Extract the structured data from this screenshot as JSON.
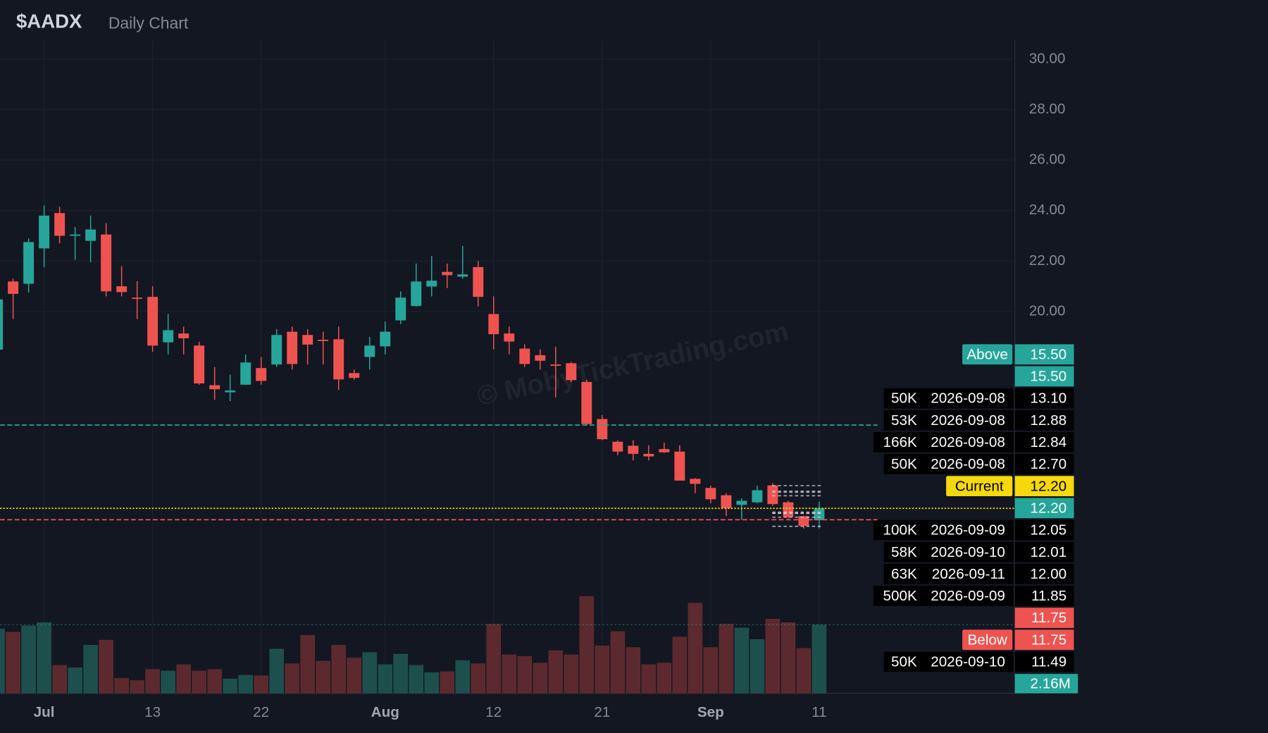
{
  "chart_data": {
    "type": "candlestick",
    "title": "$AADX",
    "subtitle": "Daily Chart",
    "watermark": "© MobyTickTrading.com",
    "categories": [
      null,
      null,
      null,
      "Jul",
      null,
      null,
      null,
      null,
      null,
      null,
      "13",
      null,
      null,
      null,
      null,
      null,
      null,
      "22",
      null,
      null,
      null,
      null,
      null,
      null,
      null,
      "Aug",
      null,
      null,
      null,
      null,
      null,
      null,
      "12",
      null,
      null,
      null,
      null,
      null,
      null,
      "21",
      null,
      null,
      null,
      null,
      null,
      null,
      "Sep",
      null,
      null,
      null,
      null,
      null,
      null,
      "11"
    ],
    "open": [
      18.49,
      21.19,
      21.1,
      22.5,
      23.9,
      23.0,
      22.8,
      23.05,
      21.0,
      20.55,
      20.58,
      18.78,
      19.13,
      18.65,
      17.08,
      16.8,
      17.1,
      17.76,
      17.9,
      19.2,
      19.07,
      18.88,
      18.9,
      17.56,
      18.2,
      18.62,
      19.65,
      20.22,
      20.99,
      21.57,
      21.38,
      21.76,
      19.9,
      19.13,
      18.53,
      18.27,
      17.9,
      17.95,
      17.21,
      15.74,
      14.84,
      14.68,
      14.36,
      14.55,
      14.45,
      13.37,
      13.01,
      12.72,
      12.34,
      12.44,
      13.11,
      12.44,
      11.89,
      11.73
    ],
    "high": [
      20.6,
      21.3,
      22.9,
      24.2,
      24.15,
      23.35,
      23.8,
      23.5,
      21.8,
      21.2,
      21.0,
      19.9,
      19.4,
      18.8,
      17.8,
      17.5,
      18.3,
      18.2,
      19.3,
      19.4,
      19.3,
      19.2,
      19.4,
      17.7,
      19.0,
      19.6,
      20.8,
      21.9,
      22.2,
      21.9,
      22.6,
      22.0,
      20.6,
      19.4,
      18.7,
      18.5,
      18.6,
      18.0,
      17.3,
      15.9,
      14.9,
      14.9,
      14.7,
      14.8,
      14.7,
      13.4,
      13.1,
      12.8,
      12.6,
      13.1,
      13.2,
      12.5,
      11.9,
      12.47
    ],
    "low": [
      18.4,
      19.7,
      20.75,
      21.75,
      22.7,
      22.05,
      21.95,
      20.6,
      20.6,
      19.7,
      18.4,
      18.3,
      18.3,
      17.1,
      16.5,
      16.45,
      17.1,
      17.1,
      17.8,
      17.7,
      17.9,
      17.9,
      16.9,
      17.3,
      17.7,
      18.3,
      19.5,
      20.2,
      20.6,
      20.93,
      21.3,
      20.2,
      18.5,
      18.3,
      17.8,
      17.7,
      16.6,
      17.2,
      15.5,
      14.9,
      14.3,
      14.1,
      14.1,
      14.4,
      13.3,
      12.8,
      12.4,
      11.9,
      11.75,
      12.4,
      12.3,
      11.8,
      11.4,
      11.4
    ],
    "close": [
      20.48,
      20.7,
      22.75,
      23.8,
      23.0,
      23.05,
      23.25,
      20.8,
      20.77,
      20.5,
      18.65,
      19.26,
      18.94,
      17.15,
      16.92,
      16.87,
      17.98,
      17.25,
      19.07,
      17.92,
      18.69,
      18.84,
      17.31,
      17.37,
      18.65,
      19.2,
      20.55,
      21.19,
      21.22,
      21.44,
      21.47,
      20.58,
      19.1,
      18.81,
      17.92,
      18.05,
      17.85,
      17.28,
      15.54,
      14.94,
      14.45,
      14.36,
      14.26,
      14.42,
      13.3,
      13.17,
      12.56,
      12.21,
      12.5,
      12.92,
      12.37,
      11.86,
      11.51,
      12.2
    ],
    "volume": [
      2030000,
      1930000,
      2130000,
      2230000,
      890000,
      810000,
      1520000,
      1680000,
      480000,
      410000,
      760000,
      710000,
      910000,
      710000,
      760000,
      460000,
      580000,
      560000,
      1400000,
      940000,
      1830000,
      1020000,
      1520000,
      1120000,
      1290000,
      910000,
      1240000,
      890000,
      660000,
      690000,
      1040000,
      940000,
      2180000,
      1220000,
      1170000,
      960000,
      1350000,
      1220000,
      3050000,
      1500000,
      1950000,
      1450000,
      910000,
      960000,
      1780000,
      2840000,
      1450000,
      2180000,
      2060000,
      1700000,
      2340000,
      2230000,
      1420000,
      2160000
    ],
    "volume_last_label": "2.16M",
    "up_color": "#26a69a",
    "down_color": "#ef5350",
    "volume_up_color": "#1d4f4d",
    "volume_down_color": "#5c2a2e",
    "ylim": [
      4.87,
      30.74
    ],
    "yticks": [
      {
        "value": 30,
        "label": "30.00"
      },
      {
        "value": 28,
        "label": "28.00"
      },
      {
        "value": 26,
        "label": "26.00"
      },
      {
        "value": 24,
        "label": "24.00"
      },
      {
        "value": 22,
        "label": "22.00"
      },
      {
        "value": 20,
        "label": "20.00"
      }
    ],
    "y2lim": [
      0,
      20500000
    ],
    "grid": true,
    "rows": [
      {
        "tag": "Above",
        "tag_color": "#26a69a",
        "price": 15.5,
        "price_label": "15.50",
        "color": "#26a69a"
      },
      {
        "price": 15.5,
        "price_label": "15.50",
        "color": "#26a69a"
      },
      {
        "size": "50K",
        "date": "2026-09-08",
        "price": 13.1,
        "price_label": "13.10",
        "color": "#000000"
      },
      {
        "size": "53K",
        "date": "2026-09-08",
        "price": 12.88,
        "price_label": "12.88",
        "color": "#000000"
      },
      {
        "size": "166K",
        "date": "2026-09-08",
        "price": 12.84,
        "price_label": "12.84",
        "color": "#000000"
      },
      {
        "size": "50K",
        "date": "2026-09-08",
        "price": 12.7,
        "price_label": "12.70",
        "color": "#000000"
      },
      {
        "tag": "Current",
        "tag_color": "#f5d90a",
        "price": 12.2,
        "price_label": "12.20",
        "color": "#f5d90a"
      },
      {
        "price": 12.2,
        "price_label": "12.20",
        "color": "#26a69a"
      },
      {
        "size": "100K",
        "date": "2026-09-09",
        "price": 12.05,
        "price_label": "12.05",
        "color": "#000000"
      },
      {
        "size": "58K",
        "date": "2026-09-10",
        "price": 12.01,
        "price_label": "12.01",
        "color": "#000000"
      },
      {
        "size": "63K",
        "date": "2026-09-11",
        "price": 12.0,
        "price_label": "12.00",
        "color": "#000000"
      },
      {
        "size": "500K",
        "date": "2026-09-09",
        "price": 11.85,
        "price_label": "11.85",
        "color": "#000000"
      },
      {
        "price": 11.75,
        "price_label": "11.75",
        "color": "#ef5350"
      },
      {
        "tag": "Below",
        "tag_color": "#ef5350",
        "price": 11.75,
        "price_label": "11.75",
        "color": "#ef5350"
      },
      {
        "size": "50K",
        "date": "2026-09-10",
        "price": 11.49,
        "price_label": "11.49",
        "color": "#000000"
      }
    ]
  }
}
